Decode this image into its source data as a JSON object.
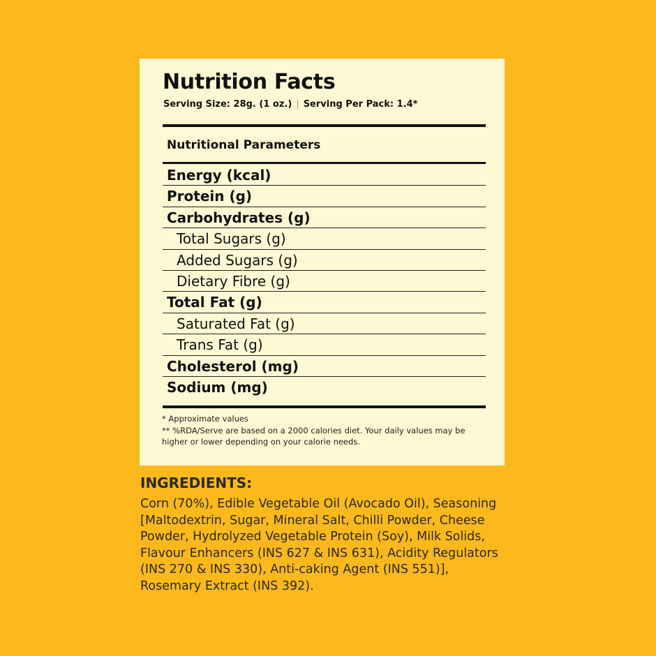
{
  "colors": {
    "background": "#FDB81C",
    "panel": "#FFF8D4",
    "text": "#111111"
  },
  "nutrition": {
    "title": "Nutrition Facts",
    "serving_size": "Serving Size: 28g. (1 oz.)",
    "separator": "|",
    "serving_per_pack": "Serving Per Pack: 1.4*",
    "parameters_header": "Nutritional Parameters",
    "rows": [
      {
        "label": "Energy (kcal)",
        "level": "main"
      },
      {
        "label": "Protein (g)",
        "level": "main"
      },
      {
        "label": "Carbohydrates (g)",
        "level": "main"
      },
      {
        "label": "Total Sugars (g)",
        "level": "sub"
      },
      {
        "label": "Added Sugars (g)",
        "level": "sub"
      },
      {
        "label": "Dietary Fibre (g)",
        "level": "sub"
      },
      {
        "label": "Total Fat (g)",
        "level": "main"
      },
      {
        "label": "Saturated Fat (g)",
        "level": "sub"
      },
      {
        "label": "Trans Fat (g)",
        "level": "sub"
      },
      {
        "label": "Cholesterol (mg)",
        "level": "main"
      },
      {
        "label": "Sodium (mg)",
        "level": "main"
      }
    ],
    "footnote_1": "* Approximate values",
    "footnote_2": "** %RDA/Serve are based on a 2000 calories diet. Your daily values may be higher or lower depending on your calorie needs."
  },
  "ingredients": {
    "heading": "INGREDIENTS:",
    "text": "Corn (70%), Edible Vegetable Oil (Avocado Oil), Seasoning [Maltodextrin, Sugar, Mineral Salt, Chilli Powder, Cheese Powder, Hydrolyzed Vegetable Protein (Soy), Milk Solids, Flavour Enhancers (INS 627 & INS 631), Acidity Regulators (INS 270 & INS 330), Anti-caking Agent (INS 551)], Rosemary Extract (INS 392)."
  }
}
